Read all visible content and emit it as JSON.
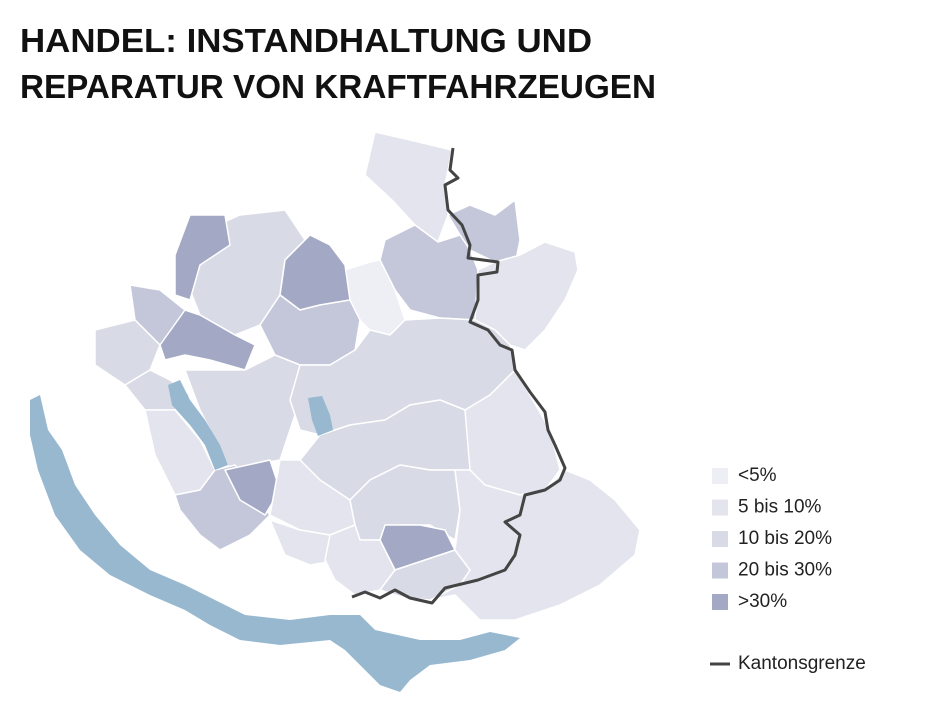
{
  "header": {
    "title_lines": [
      "HANDEL: INSTANDHALTUNG UND",
      "REPARATUR VON KRAFTFAHRZEUGEN"
    ]
  },
  "legend": {
    "classes": [
      {
        "label": "<5%",
        "color": "#eeeef5"
      },
      {
        "label": "5 bis 10%",
        "color": "#e3e4ed"
      },
      {
        "label": "10 bis 20%",
        "color": "#d8dae6"
      },
      {
        "label": "20 bis 30%",
        "color": "#c4c7da"
      },
      {
        "label": ">30%",
        "color": "#a3a8c4"
      }
    ],
    "border": {
      "label": "Kantonsgrenze",
      "color": "#444444"
    },
    "lake_color": "#98b8d0"
  }
}
